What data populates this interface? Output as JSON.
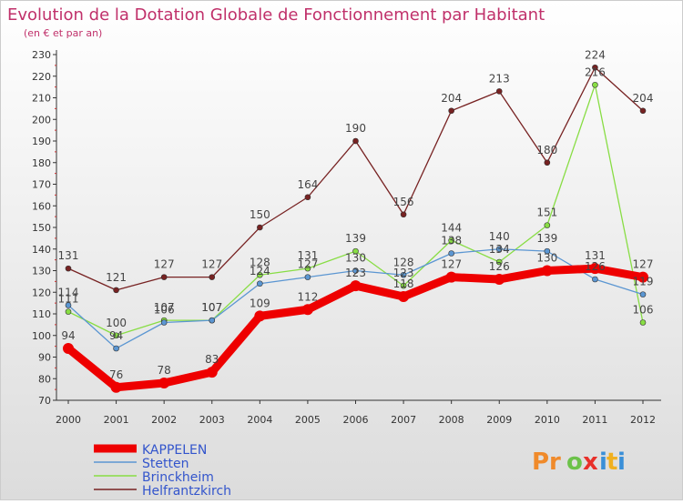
{
  "title": "Evolution de la Dotation Globale de Fonctionnement par Habitant",
  "subtitle": "(en € et par an)",
  "brand": {
    "text_pr": "Pr",
    "text_o": "o",
    "text_x": "x",
    "text_i1": "i",
    "text_t": "t",
    "text_i2": "i"
  },
  "colors": {
    "title": "#c0306a",
    "background_top": "#ffffff",
    "background_bottom": "#dcdcdc",
    "legend_text": "#3355cc"
  },
  "chart_data": {
    "type": "line",
    "title": "Evolution de la Dotation Globale de Fonctionnement par Habitant",
    "subtitle": "(en € et par an)",
    "x": [
      "2000",
      "2001",
      "2002",
      "2003",
      "2004",
      "2005",
      "2006",
      "2007",
      "2008",
      "2009",
      "2010",
      "2011",
      "2012"
    ],
    "ylim": [
      70,
      230
    ],
    "yticks": [
      70,
      80,
      90,
      100,
      110,
      120,
      130,
      140,
      150,
      160,
      170,
      180,
      190,
      200,
      210,
      220,
      230
    ],
    "grid": false,
    "legend_position": "bottom-left",
    "series": [
      {
        "name": "KAPPELEN",
        "color": "#ee0000",
        "values": [
          94,
          76,
          78,
          83,
          109,
          112,
          123,
          118,
          127,
          126,
          130,
          131,
          127
        ],
        "labels": [
          "94",
          "76",
          "78",
          "83",
          "109",
          "112",
          "123",
          "118",
          "127",
          "126",
          "130",
          "131",
          "127"
        ]
      },
      {
        "name": "Stetten",
        "color": "#5b96d2",
        "values": [
          114,
          94,
          106,
          107,
          124,
          127,
          130,
          128,
          138,
          140,
          139,
          126,
          119
        ],
        "labels": [
          "114",
          "94",
          "106",
          "107",
          "124",
          "127",
          "130",
          "128",
          "138",
          "140",
          "139",
          "126",
          "119"
        ]
      },
      {
        "name": "Brinckheim",
        "color": "#88dd44",
        "values": [
          111,
          100,
          107,
          107,
          128,
          131,
          139,
          123,
          144,
          134,
          151,
          216,
          106
        ],
        "labels": [
          "111",
          "100",
          "107",
          "107",
          "128",
          "131",
          "139",
          "123",
          "144",
          "134",
          "151",
          "216",
          "106"
        ]
      },
      {
        "name": "Helfrantzkirch",
        "color": "#772222",
        "values": [
          131,
          121,
          127,
          127,
          150,
          164,
          190,
          156,
          204,
          213,
          180,
          224,
          204
        ],
        "labels": [
          "131",
          "121",
          "127",
          "127",
          "150",
          "164",
          "190",
          "156",
          "204",
          "213",
          "180",
          "224",
          "204"
        ]
      }
    ]
  }
}
